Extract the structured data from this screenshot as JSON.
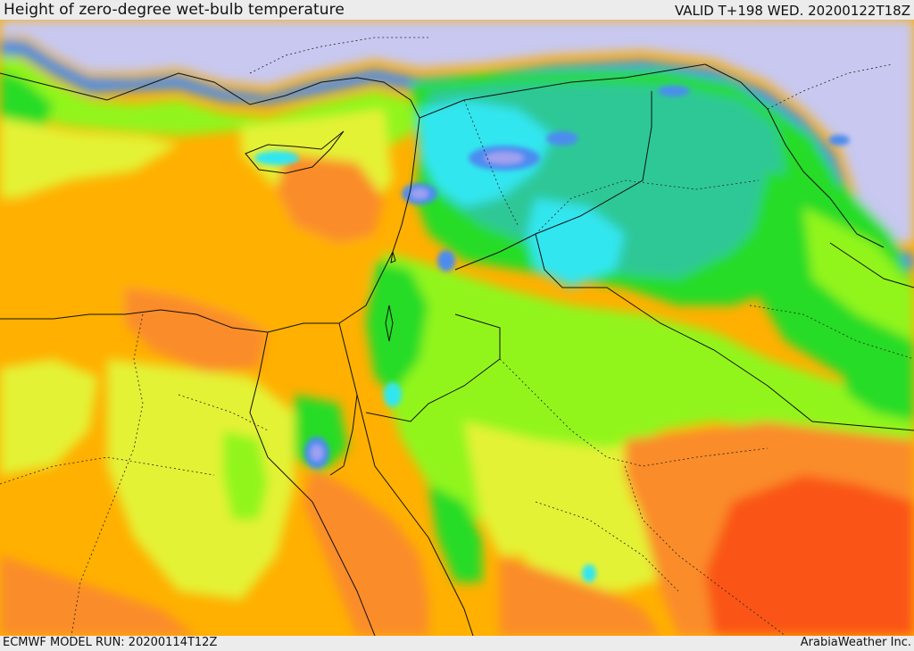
{
  "header": {
    "title": "Height of zero-degree wet-bulb temperature",
    "valid": "VALID T+198 WED. 20200122T18Z"
  },
  "footer": {
    "model_run": "ECMWF MODEL RUN: 20200114T12Z",
    "credit": "ArabiaWeather Inc."
  },
  "colors": {
    "land_base": "#ffb000",
    "orange_warm": "#fa8c2b",
    "red_hot": "#fa5516",
    "yellow": "#e4f236",
    "lime": "#91f51f",
    "green": "#28dc28",
    "teal": "#2ec896",
    "cyan": "#33e6f0",
    "blue": "#4b8cf0",
    "violet": "#a0a0f0",
    "lavender": "#c8c8f0",
    "border": "#111111"
  }
}
